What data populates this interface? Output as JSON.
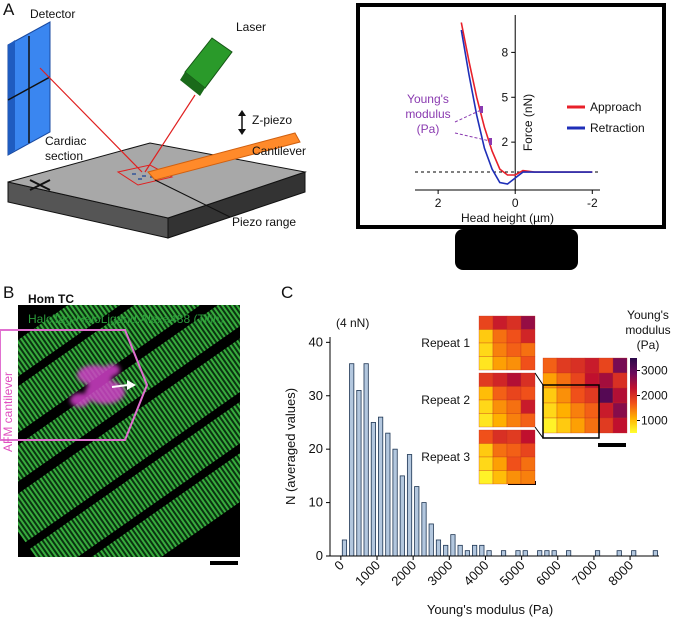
{
  "panel_labels": [
    "A",
    "B",
    "C"
  ],
  "diagram": {
    "detector": "Detector",
    "laser": "Laser",
    "z_piezo": "Z-piezo",
    "cantilever": "Cantilever",
    "cardiac_section": [
      "Cardiac",
      "section"
    ],
    "piezo_range": "Piezo range"
  },
  "image_panel": {
    "genotype": "Hom TC",
    "stain": "HaloTag-HaloLigand:Alexa488 (Titin)",
    "cantilever_label": "AFM cantilever"
  },
  "chart_data": [
    {
      "type": "line",
      "xlabel": "Head height (µm)",
      "ylabel": "Force (nN)",
      "annotation": [
        "Young's",
        "modulus",
        "(Pa)"
      ],
      "x": [
        1.4,
        1.2,
        1.0,
        0.8,
        0.6,
        0.4,
        0.2,
        0,
        -0.2,
        -0.5,
        -1,
        -1.5,
        -2
      ],
      "series": [
        {
          "name": "Approach",
          "color": "#e8202a",
          "values": [
            10,
            7.4,
            5.0,
            3.0,
            1.4,
            0.2,
            -0.2,
            -0.2,
            0.1,
            0,
            0,
            0,
            0
          ]
        },
        {
          "name": "Retraction",
          "color": "#1f2fb8",
          "values": [
            9.5,
            6.5,
            3.8,
            1.6,
            0.2,
            -0.7,
            -0.8,
            -0.4,
            0,
            0,
            0,
            0,
            0
          ]
        }
      ],
      "xlim": [
        2.6,
        -2.2
      ],
      "xticks": [
        2,
        0,
        -2
      ],
      "ylim": [
        -1.2,
        10.5
      ],
      "yticks": [
        2,
        5,
        8
      ],
      "baseline": 0,
      "legend": "right"
    },
    {
      "type": "histogram",
      "annotation": "(4 nN)",
      "xlabel": "Young's modulus (Pa)",
      "ylabel": "N (averaged values)",
      "bins": [
        0,
        200,
        400,
        600,
        800,
        1000,
        1200,
        1400,
        1600,
        1800,
        2000,
        2200,
        2400,
        2600,
        2800,
        3000,
        3200,
        3400,
        3600,
        3800,
        4000,
        4200,
        4400,
        4600,
        4800,
        5000,
        5200,
        5400,
        5600,
        5800,
        6000,
        6200,
        6400,
        6600,
        6800,
        7000,
        7200,
        7400,
        7600,
        7800,
        8000,
        8200,
        8400,
        8600,
        8800
      ],
      "counts": [
        3,
        36,
        31,
        36,
        25,
        26,
        23,
        20,
        15,
        19,
        13,
        10,
        6,
        3,
        2,
        4,
        2,
        1,
        2,
        2,
        1,
        0,
        1,
        0,
        1,
        1,
        0,
        1,
        1,
        1,
        0,
        1,
        0,
        0,
        0,
        1,
        0,
        0,
        1,
        0,
        1,
        0,
        0,
        1
      ],
      "color": "#b3c7de",
      "edge_color": "#1d3553",
      "xlim": [
        -300,
        8800
      ],
      "xticks": [
        0,
        1000,
        2000,
        3000,
        4000,
        5000,
        6000,
        7000,
        8000
      ],
      "ylim": [
        0,
        41
      ],
      "yticks": [
        0,
        10,
        20,
        30,
        40
      ]
    },
    {
      "type": "heatmap",
      "panels": [
        {
          "name": "Repeat 1",
          "values": [
            [
              1800,
              2200,
              2000,
              2600
            ],
            [
              900,
              1500,
              1700,
              2100
            ],
            [
              800,
              1400,
              1600,
              1500
            ],
            [
              700,
              1200,
              1300,
              1700
            ]
          ]
        },
        {
          "name": "Repeat 2",
          "values": [
            [
              1900,
              2100,
              2400,
              2000
            ],
            [
              1000,
              1600,
              1800,
              1700
            ],
            [
              800,
              1300,
              1500,
              2200
            ],
            [
              700,
              1100,
              1400,
              1600
            ]
          ]
        },
        {
          "name": "Repeat 3",
          "values": [
            [
              1700,
              2000,
              1900,
              2300
            ],
            [
              900,
              1500,
              1600,
              1800
            ],
            [
              800,
              1200,
              1700,
              1500
            ],
            [
              600,
              1000,
              1300,
              1400
            ]
          ]
        }
      ],
      "combined": [
        [
          1600,
          1900,
          2000,
          2200,
          1800,
          2800
        ],
        [
          1200,
          1500,
          1800,
          2300,
          2500,
          2000
        ],
        [
          900,
          1300,
          1700,
          1900,
          3100,
          2400
        ],
        [
          800,
          1100,
          1400,
          1600,
          2200,
          2700
        ],
        [
          600,
          900,
          1200,
          1500,
          1900,
          2300
        ]
      ],
      "colorbar_title": [
        "Young's",
        "modulus",
        "(Pa)"
      ],
      "clim": [
        500,
        3500
      ],
      "cticks": [
        1000,
        2000,
        3000
      ],
      "colormap": [
        "#ffff30",
        "#ffb000",
        "#f0501a",
        "#c0102e",
        "#6a0a5a",
        "#2a0848"
      ]
    }
  ]
}
